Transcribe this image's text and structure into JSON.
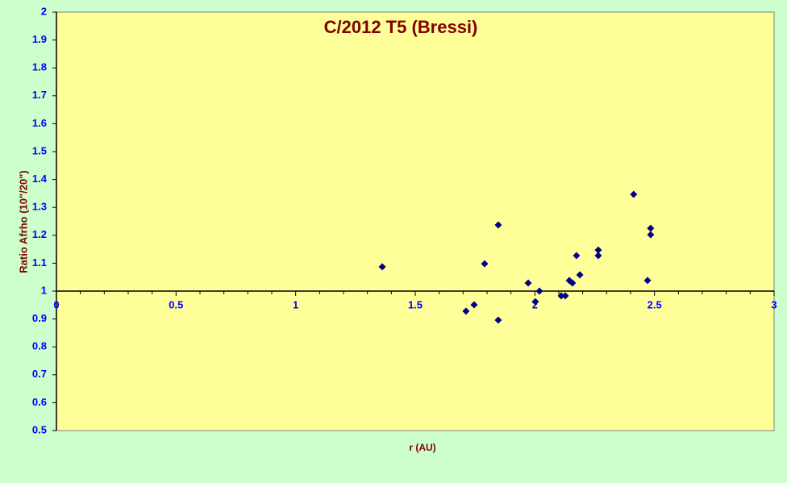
{
  "chart_data": {
    "type": "scatter",
    "title": "C/2012 T5 (Bressi)",
    "x_label": "r (AU)",
    "y_label": "Ratio Afrho (10\"/20\")",
    "x": [
      1.362,
      1.712,
      1.746,
      1.79,
      1.847,
      1.847,
      1.972,
      2.002,
      2.019,
      2.11,
      2.127,
      2.144,
      2.157,
      2.174,
      2.188,
      2.265,
      2.265,
      2.413,
      2.471,
      2.484,
      2.484
    ],
    "values": [
      1.087,
      0.928,
      0.951,
      1.098,
      1.237,
      0.896,
      1.029,
      0.962,
      1.0,
      0.983,
      0.983,
      1.038,
      1.029,
      1.127,
      1.058,
      1.147,
      1.127,
      1.347,
      1.038,
      1.225,
      1.202
    ],
    "color": "#000080",
    "xlim": [
      0,
      3
    ],
    "xticks": [
      0,
      0.5,
      1,
      1.5,
      2,
      2.5,
      3
    ],
    "ylim": [
      0.5,
      2
    ],
    "yticks": [
      0.5,
      0.6,
      0.7,
      0.8,
      0.9,
      1,
      1.1,
      1.2,
      1.3,
      1.4,
      1.5,
      1.6,
      1.7,
      1.8,
      1.9,
      2
    ],
    "x_axis_crossing": 1
  }
}
